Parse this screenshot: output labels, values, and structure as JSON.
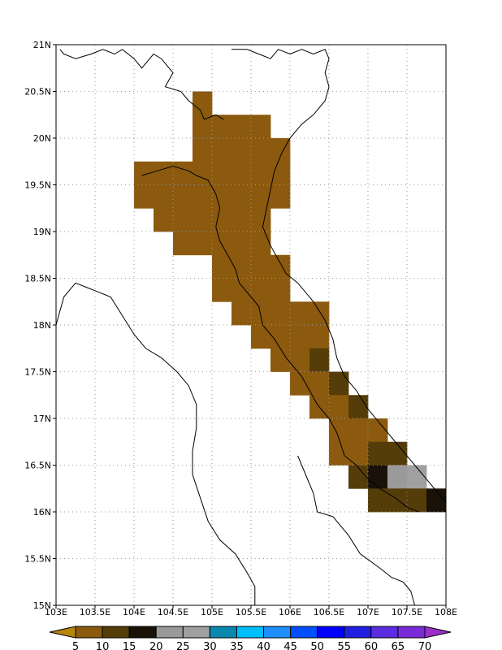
{
  "map": {
    "lat_range": [
      15,
      21
    ],
    "lon_range": [
      103,
      108
    ],
    "grid_step_deg": 0.25,
    "gridlines": "dotted",
    "y_ticks": [
      "15N",
      "15.5N",
      "16N",
      "16.5N",
      "17N",
      "17.5N",
      "18N",
      "18.5N",
      "19N",
      "19.5N",
      "20N",
      "20.5N",
      "21N"
    ],
    "x_ticks": [
      "103E",
      "103.5E",
      "104E",
      "104.5E",
      "105E",
      "105.5E",
      "106E",
      "106.5E",
      "107E",
      "107.5E",
      "108E"
    ],
    "cells": [
      {
        "lon": 104.875,
        "lat": 20.375,
        "v": 7
      },
      {
        "lon": 104.875,
        "lat": 20.125,
        "v": 7
      },
      {
        "lon": 105.125,
        "lat": 20.125,
        "v": 7
      },
      {
        "lon": 105.375,
        "lat": 20.125,
        "v": 7
      },
      {
        "lon": 105.625,
        "lat": 20.125,
        "v": 7
      },
      {
        "lon": 104.875,
        "lat": 19.875,
        "v": 7
      },
      {
        "lon": 105.125,
        "lat": 19.875,
        "v": 7
      },
      {
        "lon": 105.375,
        "lat": 19.875,
        "v": 7
      },
      {
        "lon": 105.625,
        "lat": 19.875,
        "v": 7
      },
      {
        "lon": 105.875,
        "lat": 19.875,
        "v": 7
      },
      {
        "lon": 104.125,
        "lat": 19.625,
        "v": 7
      },
      {
        "lon": 104.375,
        "lat": 19.625,
        "v": 7
      },
      {
        "lon": 104.625,
        "lat": 19.625,
        "v": 7
      },
      {
        "lon": 104.875,
        "lat": 19.625,
        "v": 7
      },
      {
        "lon": 105.125,
        "lat": 19.625,
        "v": 7
      },
      {
        "lon": 105.375,
        "lat": 19.625,
        "v": 7
      },
      {
        "lon": 105.625,
        "lat": 19.625,
        "v": 7
      },
      {
        "lon": 105.875,
        "lat": 19.625,
        "v": 7
      },
      {
        "lon": 104.125,
        "lat": 19.375,
        "v": 7
      },
      {
        "lon": 104.375,
        "lat": 19.375,
        "v": 7
      },
      {
        "lon": 104.625,
        "lat": 19.375,
        "v": 7
      },
      {
        "lon": 104.875,
        "lat": 19.375,
        "v": 7
      },
      {
        "lon": 105.125,
        "lat": 19.375,
        "v": 7
      },
      {
        "lon": 105.375,
        "lat": 19.375,
        "v": 7
      },
      {
        "lon": 105.625,
        "lat": 19.375,
        "v": 7
      },
      {
        "lon": 105.875,
        "lat": 19.375,
        "v": 7
      },
      {
        "lon": 104.375,
        "lat": 19.125,
        "v": 7
      },
      {
        "lon": 104.625,
        "lat": 19.125,
        "v": 7
      },
      {
        "lon": 104.875,
        "lat": 19.125,
        "v": 7
      },
      {
        "lon": 105.125,
        "lat": 19.125,
        "v": 7
      },
      {
        "lon": 105.375,
        "lat": 19.125,
        "v": 7
      },
      {
        "lon": 105.625,
        "lat": 19.125,
        "v": 7
      },
      {
        "lon": 104.625,
        "lat": 18.875,
        "v": 7
      },
      {
        "lon": 104.875,
        "lat": 18.875,
        "v": 7
      },
      {
        "lon": 105.125,
        "lat": 18.875,
        "v": 7
      },
      {
        "lon": 105.375,
        "lat": 18.875,
        "v": 7
      },
      {
        "lon": 105.625,
        "lat": 18.875,
        "v": 7
      },
      {
        "lon": 105.125,
        "lat": 18.625,
        "v": 7
      },
      {
        "lon": 105.375,
        "lat": 18.625,
        "v": 7
      },
      {
        "lon": 105.625,
        "lat": 18.625,
        "v": 7
      },
      {
        "lon": 105.875,
        "lat": 18.625,
        "v": 7
      },
      {
        "lon": 105.125,
        "lat": 18.375,
        "v": 7
      },
      {
        "lon": 105.375,
        "lat": 18.375,
        "v": 7
      },
      {
        "lon": 105.625,
        "lat": 18.375,
        "v": 7
      },
      {
        "lon": 105.875,
        "lat": 18.375,
        "v": 7
      },
      {
        "lon": 105.375,
        "lat": 18.125,
        "v": 7
      },
      {
        "lon": 105.625,
        "lat": 18.125,
        "v": 7
      },
      {
        "lon": 105.875,
        "lat": 18.125,
        "v": 7
      },
      {
        "lon": 106.125,
        "lat": 18.125,
        "v": 7
      },
      {
        "lon": 106.375,
        "lat": 18.125,
        "v": 7
      },
      {
        "lon": 105.625,
        "lat": 17.875,
        "v": 7
      },
      {
        "lon": 105.875,
        "lat": 17.875,
        "v": 7
      },
      {
        "lon": 106.125,
        "lat": 17.875,
        "v": 7
      },
      {
        "lon": 106.375,
        "lat": 17.875,
        "v": 7
      },
      {
        "lon": 105.875,
        "lat": 17.625,
        "v": 7
      },
      {
        "lon": 106.125,
        "lat": 17.625,
        "v": 7
      },
      {
        "lon": 106.375,
        "lat": 17.625,
        "v": 12
      },
      {
        "lon": 106.125,
        "lat": 17.375,
        "v": 7
      },
      {
        "lon": 106.375,
        "lat": 17.375,
        "v": 7
      },
      {
        "lon": 106.625,
        "lat": 17.375,
        "v": 12
      },
      {
        "lon": 106.375,
        "lat": 17.125,
        "v": 7
      },
      {
        "lon": 106.625,
        "lat": 17.125,
        "v": 7
      },
      {
        "lon": 106.875,
        "lat": 17.125,
        "v": 12
      },
      {
        "lon": 106.625,
        "lat": 16.875,
        "v": 7
      },
      {
        "lon": 106.875,
        "lat": 16.875,
        "v": 7
      },
      {
        "lon": 107.125,
        "lat": 16.875,
        "v": 7
      },
      {
        "lon": 106.625,
        "lat": 16.625,
        "v": 7
      },
      {
        "lon": 106.875,
        "lat": 16.625,
        "v": 7
      },
      {
        "lon": 107.125,
        "lat": 16.625,
        "v": 12
      },
      {
        "lon": 107.375,
        "lat": 16.625,
        "v": 12
      },
      {
        "lon": 106.875,
        "lat": 16.375,
        "v": 12
      },
      {
        "lon": 107.125,
        "lat": 16.375,
        "v": 17
      },
      {
        "lon": 107.375,
        "lat": 16.375,
        "v": 22
      },
      {
        "lon": 107.625,
        "lat": 16.375,
        "v": 27
      },
      {
        "lon": 107.125,
        "lat": 16.125,
        "v": 12
      },
      {
        "lon": 107.375,
        "lat": 16.125,
        "v": 12
      },
      {
        "lon": 107.625,
        "lat": 16.125,
        "v": 12
      },
      {
        "lon": 107.875,
        "lat": 16.125,
        "v": 17
      }
    ],
    "coastline_lonlat": [
      [
        103.05,
        20.95
      ],
      [
        103.1,
        20.9
      ],
      [
        103.25,
        20.85
      ],
      [
        103.45,
        20.9
      ],
      [
        103.6,
        20.95
      ],
      [
        103.75,
        20.9
      ],
      [
        103.85,
        20.95
      ],
      [
        104.0,
        20.85
      ],
      [
        104.1,
        20.75
      ],
      [
        104.25,
        20.9
      ],
      [
        104.35,
        20.85
      ],
      [
        104.45,
        20.75
      ],
      [
        104.5,
        20.7
      ],
      [
        104.4,
        20.55
      ],
      [
        104.6,
        20.5
      ],
      [
        104.7,
        20.4
      ],
      [
        104.85,
        20.3
      ],
      [
        104.9,
        20.2
      ],
      [
        105.05,
        20.25
      ],
      [
        105.15,
        20.2
      ]
    ],
    "border_north_lonlat": [
      [
        105.25,
        20.95
      ],
      [
        105.45,
        20.95
      ],
      [
        105.6,
        20.9
      ],
      [
        105.75,
        20.85
      ],
      [
        105.85,
        20.95
      ],
      [
        106.0,
        20.9
      ],
      [
        106.15,
        20.95
      ],
      [
        106.3,
        20.9
      ],
      [
        106.45,
        20.95
      ],
      [
        106.5,
        20.85
      ],
      [
        106.45,
        20.7
      ],
      [
        106.5,
        20.55
      ],
      [
        106.45,
        20.4
      ],
      [
        106.3,
        20.25
      ],
      [
        106.15,
        20.15
      ],
      [
        106.0,
        20.0
      ]
    ],
    "vn_coast_lonlat": [
      [
        106.0,
        20.0
      ],
      [
        105.9,
        19.85
      ],
      [
        105.8,
        19.65
      ],
      [
        105.75,
        19.45
      ],
      [
        105.7,
        19.25
      ],
      [
        105.65,
        19.05
      ],
      [
        105.75,
        18.85
      ],
      [
        105.85,
        18.7
      ],
      [
        105.95,
        18.55
      ],
      [
        106.1,
        18.45
      ],
      [
        106.3,
        18.25
      ],
      [
        106.45,
        18.05
      ],
      [
        106.55,
        17.85
      ],
      [
        106.6,
        17.65
      ],
      [
        106.7,
        17.45
      ],
      [
        106.85,
        17.3
      ],
      [
        107.0,
        17.1
      ],
      [
        107.15,
        16.95
      ],
      [
        107.3,
        16.8
      ],
      [
        107.45,
        16.65
      ],
      [
        107.6,
        16.5
      ],
      [
        107.75,
        16.35
      ],
      [
        107.9,
        16.2
      ],
      [
        108.0,
        16.1
      ]
    ],
    "border_laos_lonlat": [
      [
        104.1,
        19.6
      ],
      [
        104.3,
        19.65
      ],
      [
        104.5,
        19.7
      ],
      [
        104.7,
        19.65
      ],
      [
        104.8,
        19.6
      ],
      [
        104.95,
        19.55
      ],
      [
        105.05,
        19.4
      ],
      [
        105.1,
        19.25
      ],
      [
        105.05,
        19.05
      ],
      [
        105.1,
        18.9
      ],
      [
        105.2,
        18.75
      ],
      [
        105.3,
        18.6
      ],
      [
        105.35,
        18.45
      ],
      [
        105.5,
        18.3
      ],
      [
        105.6,
        18.2
      ],
      [
        105.65,
        18.0
      ],
      [
        105.8,
        17.85
      ],
      [
        105.95,
        17.65
      ],
      [
        106.15,
        17.45
      ],
      [
        106.25,
        17.3
      ],
      [
        106.35,
        17.15
      ],
      [
        106.5,
        17.0
      ],
      [
        106.6,
        16.85
      ],
      [
        106.7,
        16.6
      ],
      [
        106.85,
        16.5
      ],
      [
        107.0,
        16.35
      ],
      [
        107.15,
        16.25
      ],
      [
        107.35,
        16.15
      ],
      [
        107.5,
        16.05
      ],
      [
        107.65,
        16.0
      ]
    ],
    "border_thai_lonlat": [
      [
        103.0,
        18.0
      ],
      [
        103.05,
        18.15
      ],
      [
        103.1,
        18.3
      ],
      [
        103.25,
        18.45
      ],
      [
        103.4,
        18.4
      ],
      [
        103.55,
        18.35
      ],
      [
        103.7,
        18.3
      ],
      [
        103.85,
        18.1
      ],
      [
        104.0,
        17.9
      ],
      [
        104.15,
        17.75
      ],
      [
        104.35,
        17.65
      ],
      [
        104.55,
        17.5
      ],
      [
        104.7,
        17.35
      ],
      [
        104.8,
        17.15
      ],
      [
        104.8,
        16.9
      ],
      [
        104.75,
        16.65
      ],
      [
        104.75,
        16.4
      ],
      [
        104.85,
        16.15
      ],
      [
        104.95,
        15.9
      ],
      [
        105.1,
        15.7
      ],
      [
        105.3,
        15.55
      ],
      [
        105.45,
        15.35
      ],
      [
        105.55,
        15.2
      ],
      [
        105.55,
        15.0
      ]
    ],
    "border_east_lonlat": [
      [
        106.1,
        16.6
      ],
      [
        106.2,
        16.4
      ],
      [
        106.3,
        16.2
      ],
      [
        106.35,
        16.0
      ],
      [
        106.55,
        15.95
      ],
      [
        106.75,
        15.75
      ],
      [
        106.9,
        15.55
      ],
      [
        107.15,
        15.4
      ],
      [
        107.3,
        15.3
      ],
      [
        107.45,
        15.25
      ],
      [
        107.55,
        15.15
      ],
      [
        107.6,
        15.0
      ]
    ]
  },
  "colorbar": {
    "labels": [
      "5",
      "10",
      "15",
      "20",
      "25",
      "30",
      "35",
      "40",
      "45",
      "50",
      "55",
      "60",
      "65",
      "70"
    ],
    "colors": [
      "#b8860b",
      "#8b5a0e",
      "#553d0a",
      "#1a1208",
      "#9a9a9a",
      "#a0a0a0",
      "#0a88b0",
      "#00bfff",
      "#1e90ff",
      "#0050ff",
      "#0000ff",
      "#2020e0",
      "#5a2ee0",
      "#7a2bd8",
      "#9b30c9"
    ]
  }
}
